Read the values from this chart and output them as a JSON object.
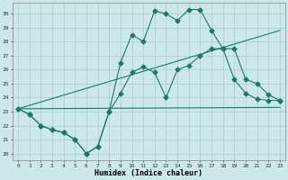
{
  "xlabel": "Humidex (Indice chaleur)",
  "bg_color": "#cce8e8",
  "grid_color": "#aacccc",
  "line_color": "#1a7a6a",
  "xlim": [
    -0.5,
    23.5
  ],
  "ylim": [
    19.5,
    30.8
  ],
  "yticks": [
    20,
    21,
    22,
    23,
    24,
    25,
    26,
    27,
    28,
    29,
    30
  ],
  "xticks": [
    0,
    1,
    2,
    3,
    4,
    5,
    6,
    7,
    8,
    9,
    10,
    11,
    12,
    13,
    14,
    15,
    16,
    17,
    18,
    19,
    20,
    21,
    22,
    23
  ],
  "line1_x": [
    0,
    1,
    2,
    3,
    4,
    5,
    6,
    7,
    8,
    9,
    10,
    11,
    12,
    13,
    14,
    15,
    16,
    17,
    18,
    19,
    20,
    21,
    22,
    23
  ],
  "line1_y": [
    23.2,
    22.8,
    22.0,
    21.7,
    21.5,
    21.0,
    20.0,
    20.5,
    23.0,
    26.5,
    28.5,
    28.0,
    30.2,
    30.0,
    29.5,
    30.3,
    30.3,
    28.8,
    27.5,
    25.3,
    24.3,
    23.9,
    23.8,
    23.8
  ],
  "line2_x": [
    0,
    1,
    2,
    3,
    4,
    5,
    6,
    7,
    8,
    9,
    10,
    11,
    12,
    13,
    14,
    15,
    16,
    17,
    18,
    19,
    20,
    21,
    22,
    23
  ],
  "line2_y": [
    23.2,
    22.8,
    22.0,
    21.7,
    21.5,
    21.0,
    20.0,
    20.5,
    23.0,
    24.3,
    25.8,
    26.2,
    25.8,
    24.0,
    26.0,
    26.3,
    27.0,
    27.5,
    27.5,
    27.5,
    25.3,
    25.0,
    24.2,
    23.8
  ],
  "line3_x": [
    0,
    23
  ],
  "line3_y": [
    23.2,
    28.8
  ],
  "line4_x": [
    0,
    23
  ],
  "line4_y": [
    23.2,
    23.3
  ]
}
